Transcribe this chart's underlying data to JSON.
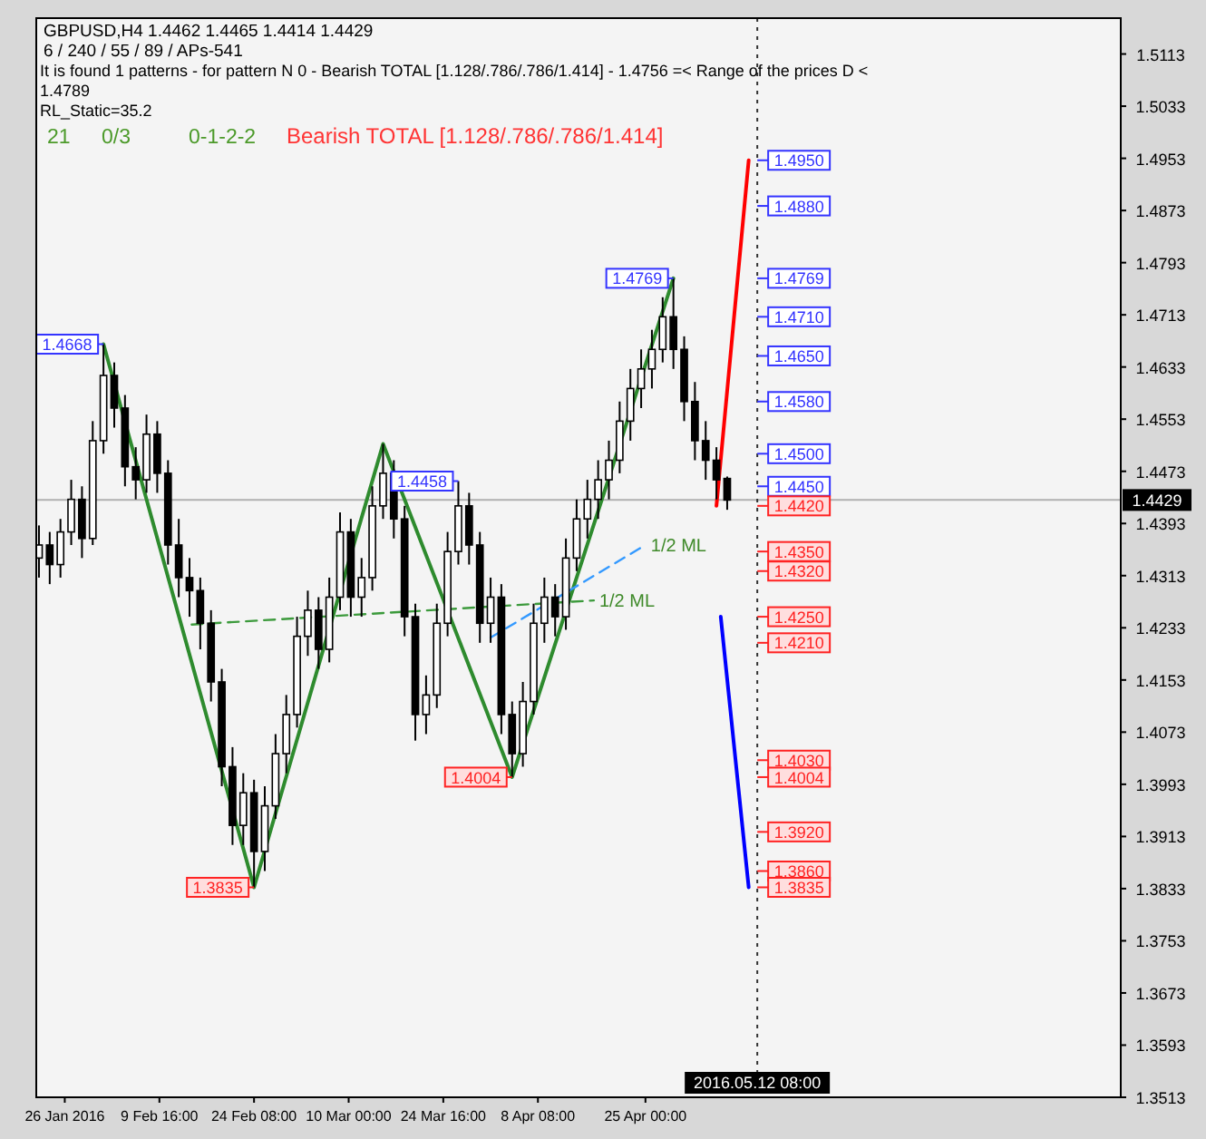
{
  "chart_data": {
    "type": "candlestick",
    "title": "GBPUSD,H4 1.4462 1.4465 1.4414 1.4429",
    "subtitle": "6 / 240 / 55 / 89 / APs-541",
    "annotations": [
      "It is found 1 patterns  - for pattern N 0 - Bearish TOTAL [1.128/.786/.786/1.414] - 1.4756 =< Range of the prices D < 1.4789",
      "RL_Static=35.2",
      "21",
      "0/3",
      "0-1-2-2",
      "Bearish TOTAL [1.128/.786/.786/1.414]",
      {
        "text": "1.4668",
        "x": "2016-02-01T00:00",
        "y": 1.4668
      },
      {
        "text": "1.3835",
        "x": "2016-02-24T08:00",
        "y": 1.3835
      },
      {
        "text": "1.4458",
        "x": "2016-03-27T00:00",
        "y": 1.4458
      },
      {
        "text": "1.4004",
        "x": "2016-04-04T08:00",
        "y": 1.4004
      },
      {
        "text": "1.4769",
        "x": "2016-04-29T08:00",
        "y": 1.4769
      },
      {
        "text": "1/2 ML",
        "x": "2016-04-17T00:00",
        "y": 1.4275
      },
      {
        "text": "1/2 ML",
        "x": "2016-04-25T00:00",
        "y": 1.436
      },
      {
        "text": "1.4950",
        "x": "2016-05-12T08:00",
        "y": 1.495
      },
      {
        "text": "1.4880",
        "x": "2016-05-12T08:00",
        "y": 1.488
      },
      {
        "text": "1.4769",
        "x": "2016-05-12T08:00",
        "y": 1.4769
      },
      {
        "text": "1.4710",
        "x": "2016-05-12T08:00",
        "y": 1.471
      },
      {
        "text": "1.4650",
        "x": "2016-05-12T08:00",
        "y": 1.465
      },
      {
        "text": "1.4580",
        "x": "2016-05-12T08:00",
        "y": 1.458
      },
      {
        "text": "1.4500",
        "x": "2016-05-12T08:00",
        "y": 1.45
      },
      {
        "text": "1.4450",
        "x": "2016-05-12T08:00",
        "y": 1.445
      },
      {
        "text": "1.4420",
        "x": "2016-05-12T08:00",
        "y": 1.442
      },
      {
        "text": "1.4350",
        "x": "2016-05-12T08:00",
        "y": 1.435
      },
      {
        "text": "1.4320",
        "x": "2016-05-12T08:00",
        "y": 1.432
      },
      {
        "text": "1.4250",
        "x": "2016-05-12T08:00",
        "y": 1.425
      },
      {
        "text": "1.4210",
        "x": "2016-05-12T08:00",
        "y": 1.421
      },
      {
        "text": "1.4030",
        "x": "2016-05-12T08:00",
        "y": 1.403
      },
      {
        "text": "1.4004",
        "x": "2016-05-12T08:00",
        "y": 1.4004
      },
      {
        "text": "1.3920",
        "x": "2016-05-12T08:00",
        "y": 1.392
      },
      {
        "text": "1.3860",
        "x": "2016-05-12T08:00",
        "y": 1.386
      },
      {
        "text": "1.3835",
        "x": "2016-05-12T08:00",
        "y": 1.3835
      }
    ],
    "xlim": [
      "2016-01-21T14:00",
      "2016-07-07T16:00"
    ],
    "ylim": [
      1.3513,
      1.5168
    ],
    "xticks": [
      {
        "value": "2016-01-26",
        "label": "26 Jan 2016"
      },
      {
        "value": "2016-02-09T16:00",
        "label": "9 Feb 16:00"
      },
      {
        "value": "2016-02-24T08:00",
        "label": "24 Feb 08:00"
      },
      {
        "value": "2016-03-10T00:00",
        "label": "10 Mar 00:00"
      },
      {
        "value": "2016-03-24T16:00",
        "label": "24 Mar 16:00"
      },
      {
        "value": "2016-04-08T08:00",
        "label": "8 Apr 08:00"
      },
      {
        "value": "2016-04-25T00:00",
        "label": "25 Apr 00:00"
      }
    ],
    "yticks": [
      1.3513,
      1.3593,
      1.3673,
      1.3753,
      1.3833,
      1.3913,
      1.3993,
      1.4073,
      1.4153,
      1.4233,
      1.4313,
      1.4393,
      1.4473,
      1.4553,
      1.4633,
      1.4713,
      1.4793,
      1.4873,
      1.4953,
      1.5033,
      1.5113
    ],
    "ref_lines": [
      {
        "axis": "y",
        "value": 1.4429,
        "label": "1.4429",
        "color": "#b0b0b0"
      },
      {
        "axis": "x",
        "value": "2016-05-12T08:00",
        "label": "2016.05.12 08:00",
        "color": "#333333",
        "line_style": "dotted"
      }
    ],
    "series": [
      {
        "type": "line",
        "color": "#2e8b2e",
        "x": [
          "2016-02-01T00:00",
          "2016-02-24T08:00",
          "2016-03-15T08:00",
          "2016-04-04T08:00",
          "2016-04-29T08:00"
        ],
        "values": [
          1.4668,
          1.3835,
          1.4515,
          1.4004,
          1.4769
        ]
      },
      {
        "type": "line",
        "color": "#3c9a3c",
        "line_style": "dashed",
        "x": [
          "2016-02-14T16:00",
          "2016-04-17T00:00"
        ],
        "values": [
          1.4238,
          1.4275
        ]
      },
      {
        "type": "line",
        "color": "#3399ff",
        "line_style": "dashed",
        "x": [
          "2016-04-01T00:00",
          "2016-04-25T00:00"
        ],
        "values": [
          1.4218,
          1.436
        ]
      },
      {
        "type": "line",
        "color": "#ff0000",
        "x": [
          "2016-05-06T00:00",
          "2016-05-11T00:00"
        ],
        "values": [
          1.442,
          1.495
        ]
      },
      {
        "type": "line",
        "color": "#0000ff",
        "x": [
          "2016-05-06T16:00",
          "2016-05-11T00:00"
        ],
        "values": [
          1.425,
          1.3835
        ]
      },
      {
        "color": "#000000",
        "x": [
          "2016-01-22T00:00",
          "2016-01-23T16:00",
          "2016-01-25T08:00",
          "2016-01-27T00:00",
          "2016-01-28T16:00",
          "2016-01-30T08:00",
          "2016-02-01T00:00",
          "2016-02-02T16:00",
          "2016-02-04T08:00",
          "2016-02-06T00:00",
          "2016-02-07T16:00",
          "2016-02-09T08:00",
          "2016-02-11T00:00",
          "2016-02-12T16:00",
          "2016-02-14T08:00",
          "2016-02-16T00:00",
          "2016-02-17T16:00",
          "2016-02-19T08:00",
          "2016-02-21T00:00",
          "2016-02-22T16:00",
          "2016-02-24T08:00",
          "2016-02-26T00:00",
          "2016-02-27T16:00",
          "2016-02-29T08:00",
          "2016-03-02T00:00",
          "2016-03-03T16:00",
          "2016-03-05T08:00",
          "2016-03-07T00:00",
          "2016-03-08T16:00",
          "2016-03-10T08:00",
          "2016-03-12T00:00",
          "2016-03-13T16:00",
          "2016-03-15T08:00",
          "2016-03-17T00:00",
          "2016-03-18T16:00",
          "2016-03-20T08:00",
          "2016-03-22T00:00",
          "2016-03-23T16:00",
          "2016-03-25T08:00",
          "2016-03-27T00:00",
          "2016-03-28T16:00",
          "2016-03-30T08:00",
          "2016-04-01T00:00",
          "2016-04-02T16:00",
          "2016-04-04T08:00",
          "2016-04-06T00:00",
          "2016-04-07T16:00",
          "2016-04-09T08:00",
          "2016-04-11T00:00",
          "2016-04-12T16:00",
          "2016-04-14T08:00",
          "2016-04-16T00:00",
          "2016-04-17T16:00",
          "2016-04-19T08:00",
          "2016-04-21T00:00",
          "2016-04-22T16:00",
          "2016-04-24T08:00",
          "2016-04-26T00:00",
          "2016-04-27T16:00",
          "2016-04-29T08:00",
          "2016-05-01T00:00",
          "2016-05-02T16:00",
          "2016-05-04T08:00",
          "2016-05-06T00:00",
          "2016-05-07T16:00"
        ],
        "ohlc": [
          [
            1.434,
            1.439,
            1.431,
            1.436
          ],
          [
            1.436,
            1.438,
            1.43,
            1.433
          ],
          [
            1.433,
            1.44,
            1.431,
            1.438
          ],
          [
            1.438,
            1.446,
            1.436,
            1.443
          ],
          [
            1.443,
            1.445,
            1.434,
            1.437
          ],
          [
            1.437,
            1.455,
            1.436,
            1.452
          ],
          [
            1.452,
            1.4668,
            1.45,
            1.462
          ],
          [
            1.462,
            1.464,
            1.454,
            1.457
          ],
          [
            1.457,
            1.459,
            1.445,
            1.448
          ],
          [
            1.448,
            1.451,
            1.443,
            1.446
          ],
          [
            1.446,
            1.456,
            1.444,
            1.453
          ],
          [
            1.453,
            1.455,
            1.444,
            1.447
          ],
          [
            1.447,
            1.449,
            1.433,
            1.436
          ],
          [
            1.436,
            1.44,
            1.428,
            1.431
          ],
          [
            1.431,
            1.434,
            1.425,
            1.429
          ],
          [
            1.429,
            1.431,
            1.42,
            1.424
          ],
          [
            1.424,
            1.426,
            1.412,
            1.415
          ],
          [
            1.415,
            1.417,
            1.399,
            1.402
          ],
          [
            1.402,
            1.405,
            1.39,
            1.393
          ],
          [
            1.393,
            1.401,
            1.39,
            1.398
          ],
          [
            1.398,
            1.4,
            1.3835,
            1.389
          ],
          [
            1.389,
            1.399,
            1.386,
            1.396
          ],
          [
            1.396,
            1.407,
            1.394,
            1.404
          ],
          [
            1.404,
            1.413,
            1.401,
            1.41
          ],
          [
            1.41,
            1.425,
            1.408,
            1.422
          ],
          [
            1.422,
            1.429,
            1.419,
            1.426
          ],
          [
            1.426,
            1.428,
            1.417,
            1.42
          ],
          [
            1.42,
            1.431,
            1.418,
            1.428
          ],
          [
            1.428,
            1.441,
            1.426,
            1.438
          ],
          [
            1.438,
            1.44,
            1.425,
            1.428
          ],
          [
            1.428,
            1.434,
            1.425,
            1.431
          ],
          [
            1.431,
            1.445,
            1.429,
            1.442
          ],
          [
            1.442,
            1.4515,
            1.44,
            1.447
          ],
          [
            1.447,
            1.449,
            1.437,
            1.44
          ],
          [
            1.44,
            1.442,
            1.422,
            1.425
          ],
          [
            1.425,
            1.427,
            1.406,
            1.41
          ],
          [
            1.41,
            1.416,
            1.407,
            1.413
          ],
          [
            1.413,
            1.427,
            1.411,
            1.424
          ],
          [
            1.424,
            1.438,
            1.422,
            1.435
          ],
          [
            1.435,
            1.4458,
            1.433,
            1.442
          ],
          [
            1.442,
            1.444,
            1.433,
            1.436
          ],
          [
            1.436,
            1.438,
            1.421,
            1.424
          ],
          [
            1.424,
            1.431,
            1.421,
            1.428
          ],
          [
            1.428,
            1.43,
            1.407,
            1.41
          ],
          [
            1.41,
            1.412,
            1.4004,
            1.404
          ],
          [
            1.404,
            1.415,
            1.402,
            1.412
          ],
          [
            1.412,
            1.427,
            1.41,
            1.424
          ],
          [
            1.424,
            1.431,
            1.421,
            1.428
          ],
          [
            1.428,
            1.43,
            1.422,
            1.425
          ],
          [
            1.425,
            1.437,
            1.423,
            1.434
          ],
          [
            1.434,
            1.443,
            1.432,
            1.44
          ],
          [
            1.44,
            1.446,
            1.437,
            1.443
          ],
          [
            1.443,
            1.449,
            1.44,
            1.446
          ],
          [
            1.446,
            1.452,
            1.443,
            1.449
          ],
          [
            1.449,
            1.458,
            1.447,
            1.455
          ],
          [
            1.455,
            1.463,
            1.452,
            1.46
          ],
          [
            1.46,
            1.466,
            1.457,
            1.463
          ],
          [
            1.463,
            1.469,
            1.46,
            1.466
          ],
          [
            1.466,
            1.474,
            1.464,
            1.471
          ],
          [
            1.471,
            1.4769,
            1.463,
            1.466
          ],
          [
            1.466,
            1.468,
            1.455,
            1.458
          ],
          [
            1.458,
            1.461,
            1.449,
            1.452
          ],
          [
            1.452,
            1.455,
            1.446,
            1.449
          ],
          [
            1.449,
            1.451,
            1.443,
            1.446
          ],
          [
            1.4462,
            1.4465,
            1.4414,
            1.4429
          ]
        ]
      }
    ]
  }
}
